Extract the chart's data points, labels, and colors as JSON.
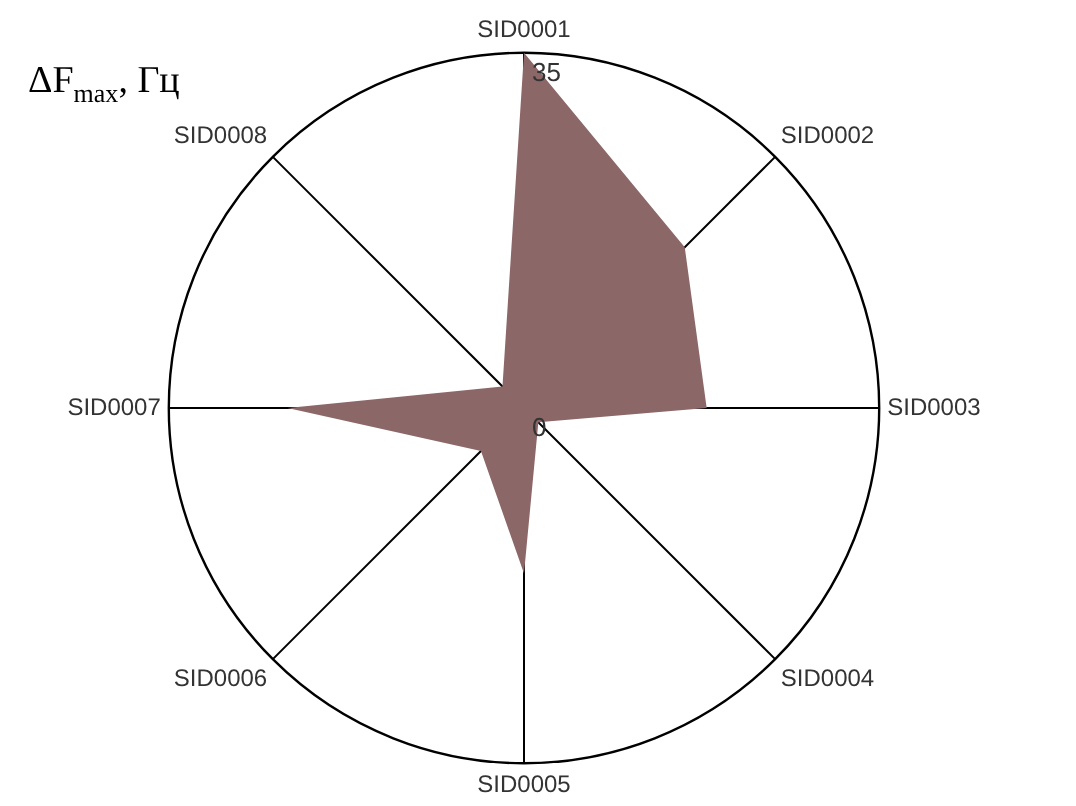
{
  "chart_data": {
    "type": "radar",
    "title": "ΔF$_{max}$, Гц",
    "categories": [
      "SID0001",
      "SID0002",
      "SID0003",
      "SID0004",
      "SID0005",
      "SID0006",
      "SID0007",
      "SID0008"
    ],
    "series": [
      {
        "color": "#8c6767",
        "values": [
          35,
          22.4,
          18,
          2,
          16.3,
          6,
          23.3,
          3
        ]
      }
    ],
    "ylim": [
      0,
      35
    ],
    "yticks": [
      0,
      35
    ],
    "grid": true,
    "legend": false
  }
}
